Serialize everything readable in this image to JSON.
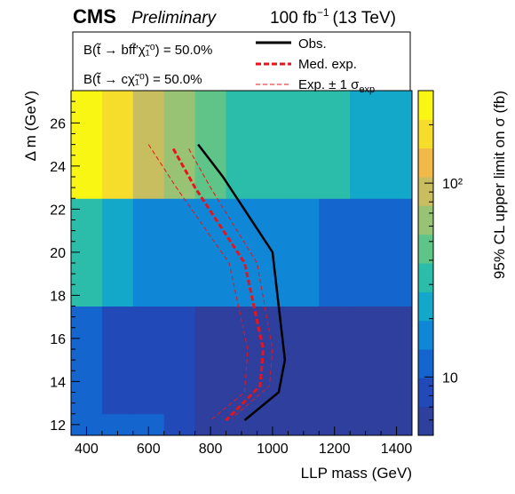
{
  "header": {
    "experiment": "CMS",
    "status": "Preliminary",
    "lumi": "100 fb",
    "lumi_exp": "−1",
    "energy": "(13 TeV)"
  },
  "legend": {
    "box1_line1": "B(t̃ → bff̄′χ̃₁⁰) = 50.0%",
    "box1_line2": "B(t̃ → cχ̃₁⁰) = 50.0%",
    "obs_label": "Obs.",
    "med_label": "Med. exp.",
    "band_label": "Exp. ± 1 σ",
    "band_label_sub": "exp"
  },
  "colors": {
    "obs": "#000000",
    "exp": "#e8141c",
    "palette": [
      "#2f3f9e",
      "#2249b8",
      "#1565cf",
      "#0f86d6",
      "#13a7c9",
      "#2cbdaa",
      "#5fc487",
      "#98c274",
      "#c8be5f",
      "#f1b947",
      "#f6dc2b",
      "#f9f614"
    ]
  },
  "chart_data": {
    "type": "heatmap",
    "xlabel": "LLP mass (GeV)",
    "ylabel": "Δ m (GeV)",
    "zlabel": "95% CL upper limit on σ (fb)",
    "xlim": [
      350,
      1450
    ],
    "ylim": [
      11.5,
      27.5
    ],
    "x_ticks": [
      400,
      600,
      800,
      1000,
      1200,
      1400
    ],
    "y_ticks": [
      12,
      14,
      16,
      18,
      20,
      22,
      24,
      26
    ],
    "z_ticks": [
      10,
      100
    ],
    "z_tick_labels": [
      "10",
      "10²"
    ],
    "zlim": [
      5,
      300
    ],
    "z_log": true,
    "x_bins": [
      350,
      450,
      550,
      650,
      750,
      850,
      950,
      1050,
      1150,
      1250,
      1450
    ],
    "y_bins": [
      11.5,
      12.5,
      17.5,
      22.5,
      27.5
    ],
    "z": [
      [
        12,
        11,
        10,
        9,
        7,
        6,
        6,
        6,
        5.5,
        5.5
      ],
      [
        10,
        9.5,
        9,
        8.5,
        7,
        6.5,
        6.5,
        6,
        6,
        5.5
      ],
      [
        30,
        20,
        19,
        18,
        17,
        16,
        15,
        14,
        13,
        10
      ],
      [
        250,
        170,
        100,
        60,
        45,
        35,
        32,
        30,
        28,
        25
      ]
    ],
    "series": [
      {
        "name": "Obs.",
        "x": [
          760,
          840,
          1000,
          1040,
          1020,
          910
        ],
        "y": [
          25.0,
          23.5,
          20.0,
          15.0,
          13.5,
          12.2
        ]
      },
      {
        "name": "Med. exp.",
        "x": [
          680,
          750,
          910,
          970,
          960,
          850
        ],
        "y": [
          24.8,
          23.0,
          19.5,
          15.5,
          13.8,
          12.2
        ]
      },
      {
        "name": "Exp. ± 1 σexp",
        "x": [
          730,
          800,
          950,
          1000,
          990,
          870
        ],
        "y": [
          24.8,
          23.0,
          19.5,
          15.5,
          13.8,
          12.3
        ]
      },
      {
        "name": "Exp. ± 1 σexp",
        "x": [
          600,
          690,
          860,
          920,
          910,
          800
        ],
        "y": [
          25.0,
          23.0,
          19.5,
          15.5,
          13.5,
          12.2
        ]
      }
    ]
  }
}
